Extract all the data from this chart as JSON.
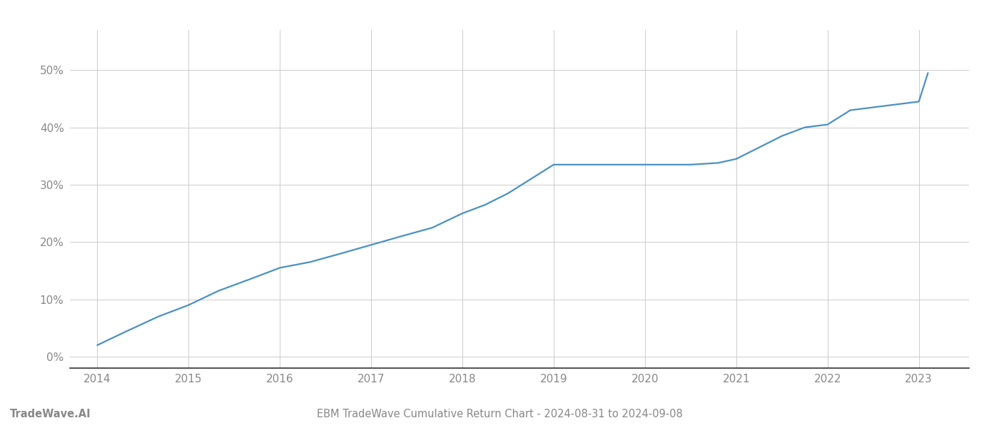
{
  "title": "EBM TradeWave Cumulative Return Chart - 2024-08-31 to 2024-09-08",
  "watermark": "TradeWave.AI",
  "line_color": "#4a90c4",
  "background_color": "#ffffff",
  "grid_color": "#cccccc",
  "years": [
    2014.0,
    2014.33,
    2014.67,
    2015.0,
    2015.33,
    2015.67,
    2016.0,
    2016.33,
    2016.67,
    2017.0,
    2017.33,
    2017.67,
    2018.0,
    2018.25,
    2018.5,
    2018.75,
    2019.0,
    2019.2,
    2019.4,
    2019.6,
    2019.8,
    2020.0,
    2020.2,
    2020.5,
    2020.8,
    2021.0,
    2021.25,
    2021.5,
    2021.75,
    2022.0,
    2022.25,
    2022.5,
    2022.75,
    2023.0,
    2023.1
  ],
  "values": [
    2.0,
    4.5,
    7.0,
    9.0,
    11.5,
    13.5,
    15.5,
    16.5,
    18.0,
    19.5,
    21.0,
    22.5,
    25.0,
    26.5,
    28.5,
    31.0,
    33.5,
    33.5,
    33.5,
    33.5,
    33.5,
    33.5,
    33.5,
    33.5,
    33.8,
    34.5,
    36.5,
    38.5,
    40.0,
    40.5,
    43.0,
    43.5,
    44.0,
    44.5,
    49.5
  ],
  "xlim": [
    2013.7,
    2023.55
  ],
  "ylim": [
    -2,
    57
  ],
  "yticks": [
    0,
    10,
    20,
    30,
    40,
    50
  ],
  "xticks": [
    2014,
    2015,
    2016,
    2017,
    2018,
    2019,
    2020,
    2021,
    2022,
    2023
  ],
  "spine_color": "#333333",
  "tick_color": "#888888",
  "title_fontsize": 10.5,
  "watermark_fontsize": 10.5,
  "tick_fontsize": 11,
  "line_width": 1.6
}
